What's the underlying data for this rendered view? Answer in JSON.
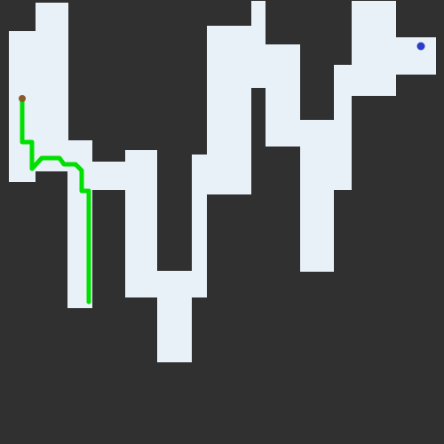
{
  "game": {
    "background_color": "#303030",
    "floor_color": "#e8f0f8",
    "path_color": "#00e000",
    "start_marker_color": "#8a5a2a",
    "goal_marker_color": "#2a3cc8"
  }
}
